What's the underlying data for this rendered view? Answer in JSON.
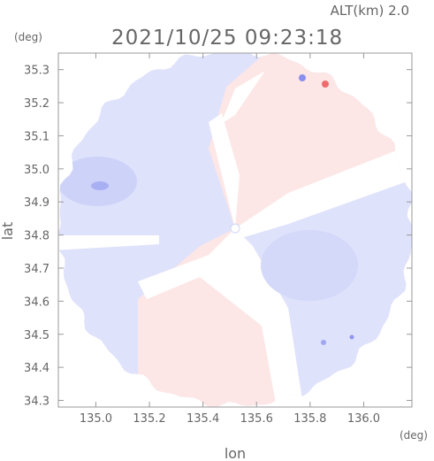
{
  "header": {
    "altitude_label": "ALT(km) 2.0",
    "timestamp": "2021/10/25 09:23:18"
  },
  "chart_data": {
    "type": "heatmap",
    "description_values": "Doppler velocity field, blue = approaching, red = receding",
    "xlabel": "lon",
    "ylabel": "lat",
    "x_unit": "(deg)",
    "y_unit": "(deg)",
    "xlim": [
      134.86,
      136.18
    ],
    "ylim": [
      34.28,
      35.35
    ],
    "x_ticks": [
      "135.0",
      "135.2",
      "135.4",
      "135.6",
      "135.8",
      "136.0"
    ],
    "x_tick_values": [
      135.0,
      135.2,
      135.4,
      135.6,
      135.8,
      136.0
    ],
    "y_ticks": [
      "34.3",
      "34.4",
      "34.5",
      "34.6",
      "34.7",
      "34.8",
      "34.9",
      "35.0",
      "35.1",
      "35.2",
      "35.3"
    ],
    "y_tick_values": [
      34.3,
      34.4,
      34.5,
      34.6,
      34.7,
      34.8,
      34.9,
      35.0,
      35.1,
      35.2,
      35.3
    ],
    "radar_center": [
      135.52,
      34.82
    ],
    "colors": {
      "approaching": "#dfe2fb",
      "receding": "#fde6e6",
      "strong_approaching": "#8a8ff0",
      "strong_receding": "#f06b6b",
      "axis": "#999999"
    }
  }
}
